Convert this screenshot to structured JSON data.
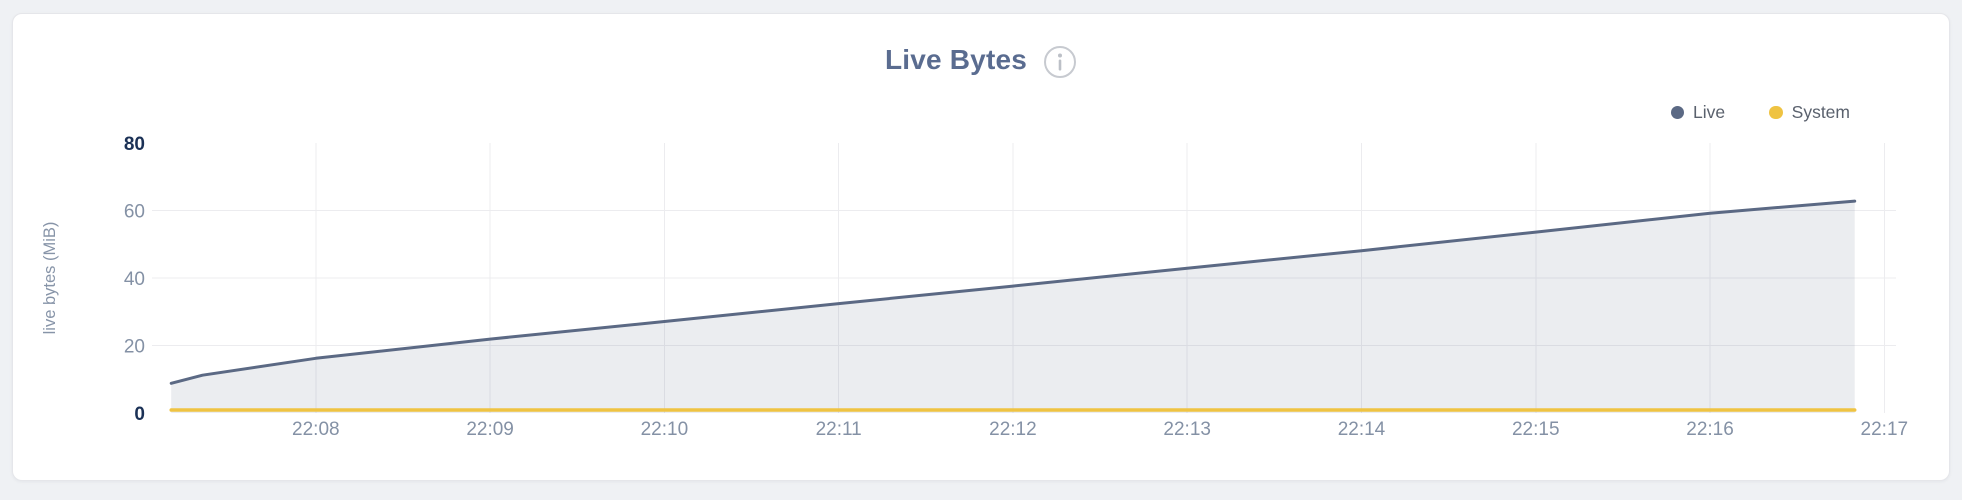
{
  "header": {
    "title": "Live Bytes"
  },
  "icons": {
    "info": "info-circle-icon"
  },
  "colors": {
    "page_background": "#eff1f4",
    "card_background": "#ffffff",
    "card_border": "#e5e6ea",
    "title": "#5a6c90",
    "grid": "#ececef",
    "axis_tick": "#8491a5",
    "axis_tick_emphasized": "#1b3156",
    "legend_text": "#5a616d",
    "live_series": "#5b6984",
    "system_series": "#efc342"
  },
  "chart_data": {
    "type": "area",
    "title": "Live Bytes",
    "xlabel": "",
    "ylabel": "live bytes (MiB)",
    "ylim": [
      0,
      80
    ],
    "y_ticks": [
      0,
      20,
      40,
      60,
      80
    ],
    "y_ticks_emphasized": [
      0,
      80
    ],
    "grid": true,
    "legend_position": "top-right",
    "x_unit": "minutes after 22:07",
    "x_domain": [
      0.06,
      10.09
    ],
    "x_ticks": [
      {
        "t": 1,
        "label": "22:08"
      },
      {
        "t": 2,
        "label": "22:09"
      },
      {
        "t": 3,
        "label": "22:10"
      },
      {
        "t": 4,
        "label": "22:11"
      },
      {
        "t": 5,
        "label": "22:12"
      },
      {
        "t": 6,
        "label": "22:13"
      },
      {
        "t": 7,
        "label": "22:14"
      },
      {
        "t": 8,
        "label": "22:15"
      },
      {
        "t": 9,
        "label": "22:16"
      },
      {
        "t": 10,
        "label": "22:17"
      }
    ],
    "series": [
      {
        "name": "Live",
        "color": "#5b6984",
        "fill": "rgba(91,103,132,0.12)",
        "width": 3,
        "points": [
          [
            0.17,
            8.8
          ],
          [
            0.35,
            11.2
          ],
          [
            1,
            16.2
          ],
          [
            2,
            21.9
          ],
          [
            3,
            27.1
          ],
          [
            4,
            32.4
          ],
          [
            5,
            37.6
          ],
          [
            6,
            42.9
          ],
          [
            7,
            48.1
          ],
          [
            8,
            53.6
          ],
          [
            9,
            59.2
          ],
          [
            9.83,
            62.8
          ]
        ]
      },
      {
        "name": "System",
        "color": "#efc342",
        "fill": "none",
        "width": 3.5,
        "points": [
          [
            0.17,
            0.9
          ],
          [
            2,
            0.9
          ],
          [
            4,
            0.9
          ],
          [
            6,
            0.9
          ],
          [
            8,
            0.9
          ],
          [
            9.83,
            0.9
          ]
        ]
      }
    ]
  }
}
